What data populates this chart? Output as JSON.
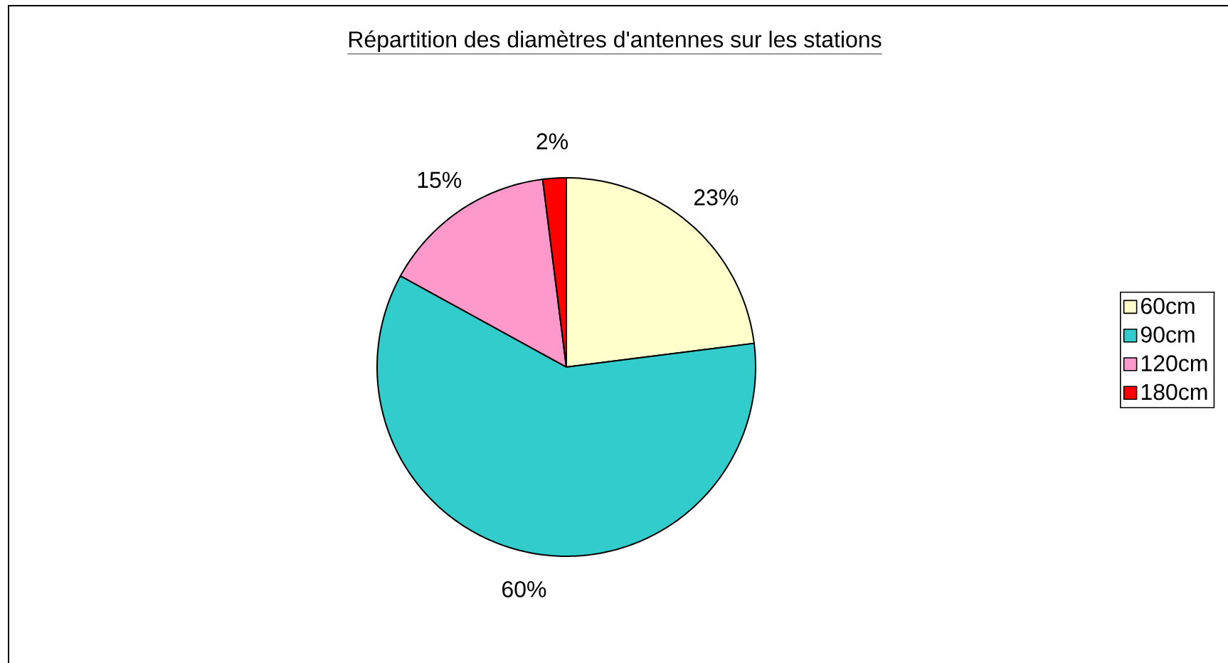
{
  "chart_data": {
    "type": "pie",
    "title": "Répartition des diamètres d'antennes sur les stations",
    "categories": [
      "60cm",
      "90cm",
      "120cm",
      "180cm"
    ],
    "values": [
      23,
      60,
      15,
      2
    ],
    "colors": [
      "#ffffcc",
      "#33cccc",
      "#ff99cc",
      "#ff0000"
    ],
    "value_labels": [
      "23%",
      "60%",
      "15%",
      "2%"
    ],
    "legend": "right"
  }
}
